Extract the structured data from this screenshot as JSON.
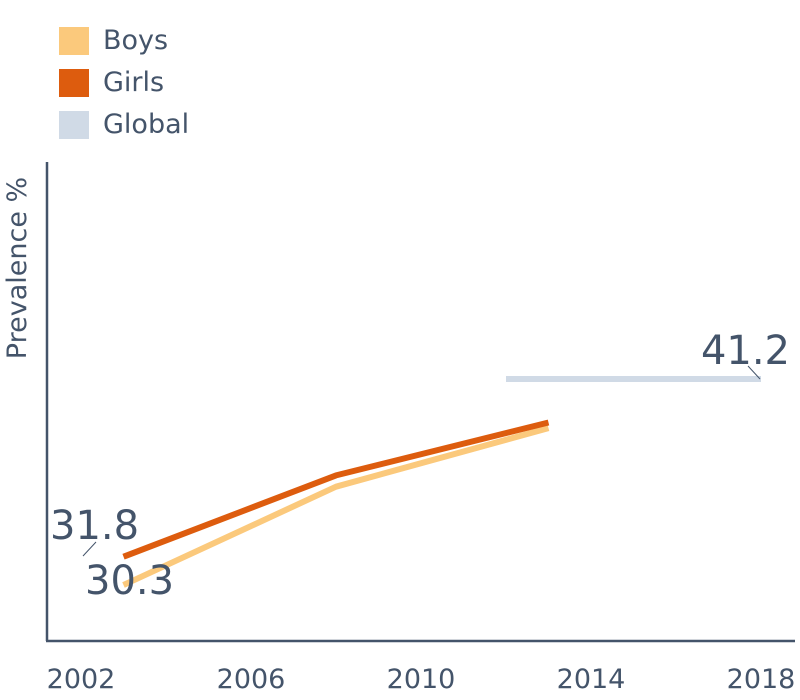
{
  "chart_data": {
    "type": "line",
    "ylabel": "Prevalence %",
    "x_ticks": [
      "2002",
      "2006",
      "2010",
      "2014",
      "2018"
    ],
    "xlim": [
      2002,
      2019
    ],
    "ylim": [
      22,
      51
    ],
    "legend_position": "top-left",
    "series": [
      {
        "name": "Boys",
        "color": "#fbc97c",
        "x": [
          2003,
          2008,
          2013
        ],
        "y": [
          30.3,
          35.5,
          38.6
        ]
      },
      {
        "name": "Girls",
        "color": "#dd5c0e",
        "x": [
          2003,
          2008,
          2013
        ],
        "y": [
          31.8,
          36.1,
          38.9
        ]
      },
      {
        "name": "Global",
        "color": "#d0dae6",
        "x": [
          2013,
          2018
        ],
        "y": [
          41.2,
          41.2
        ]
      }
    ],
    "annotations": [
      {
        "text": "31.8",
        "series": "Girls"
      },
      {
        "text": "30.3",
        "series": "Boys"
      },
      {
        "text": "41.2",
        "series": "Global"
      }
    ]
  }
}
